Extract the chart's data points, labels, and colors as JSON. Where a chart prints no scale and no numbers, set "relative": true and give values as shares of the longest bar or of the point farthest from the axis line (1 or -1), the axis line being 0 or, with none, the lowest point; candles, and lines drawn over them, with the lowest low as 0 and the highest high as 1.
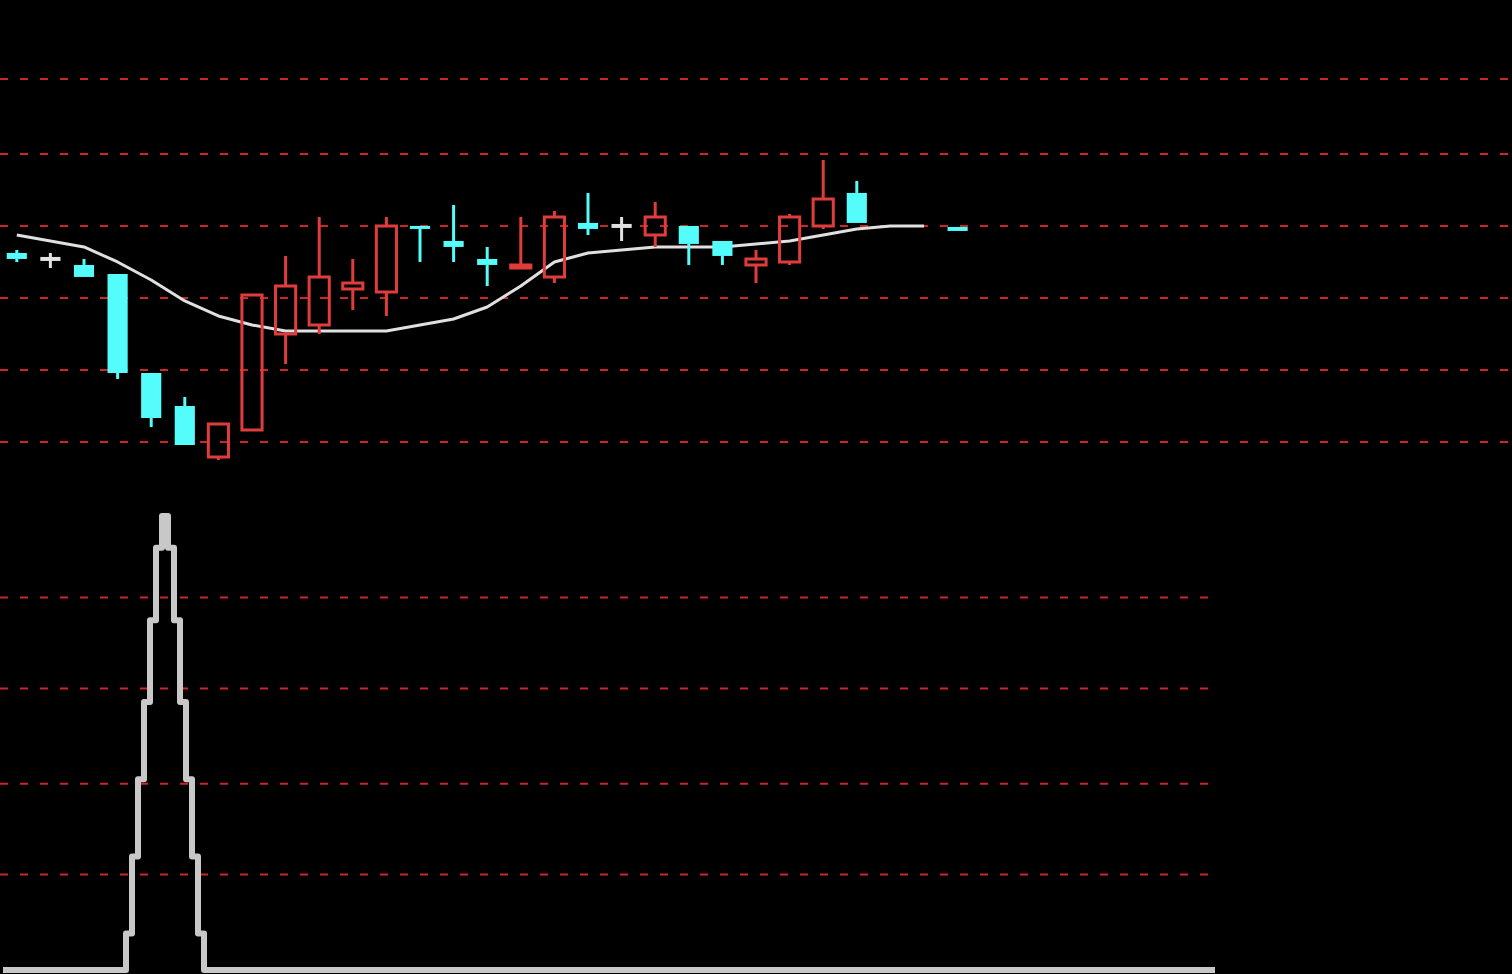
{
  "chart_data": [
    {
      "type": "candlestick",
      "relative": true,
      "categories": [
        null,
        null,
        null,
        null,
        null,
        null,
        null,
        null,
        null,
        null,
        null,
        null,
        null,
        null,
        null,
        null,
        null,
        null,
        null,
        null,
        null,
        null,
        null,
        null,
        null,
        null,
        null,
        null,
        null,
        null,
        null,
        null,
        null,
        null,
        null,
        null,
        null,
        null,
        null,
        null,
        null,
        null,
        null,
        null,
        null
      ],
      "ohlc": [
        [
          0.69,
          0.7,
          0.66,
          0.67
        ],
        [
          0.67,
          0.69,
          0.64,
          0.67
        ],
        [
          0.65,
          0.67,
          0.61,
          0.61
        ],
        [
          0.62,
          0.62,
          0.27,
          0.29
        ],
        [
          0.29,
          0.29,
          0.11,
          0.14
        ],
        [
          0.18,
          0.21,
          0.05,
          0.05
        ],
        [
          0.01,
          0.12,
          0,
          0.12
        ],
        [
          0.1,
          0.55,
          0.1,
          0.55
        ],
        [
          0.42,
          0.68,
          0.32,
          0.58
        ],
        [
          0.45,
          0.81,
          0.42,
          0.61
        ],
        [
          0.57,
          0.67,
          0.5,
          0.59
        ],
        [
          0.56,
          0.81,
          0.48,
          0.78
        ],
        [
          0.78,
          0.78,
          0.66,
          0.77
        ],
        [
          0.73,
          0.85,
          0.66,
          0.71
        ],
        [
          0.67,
          0.71,
          0.58,
          0.65
        ],
        [
          0.64,
          0.81,
          0.64,
          0.65
        ],
        [
          0.61,
          0.83,
          0.59,
          0.81
        ],
        [
          0.79,
          0.89,
          0.75,
          0.77
        ],
        [
          0.78,
          0.81,
          0.73,
          0.78
        ],
        [
          0.75,
          0.86,
          0.71,
          0.81
        ],
        [
          0.78,
          0.78,
          0.65,
          0.72
        ],
        [
          0.73,
          0.73,
          0.65,
          0.68
        ],
        [
          0.65,
          0.7,
          0.59,
          0.67
        ],
        [
          0.66,
          0.82,
          0.65,
          0.81
        ],
        [
          0.78,
          1,
          0.77,
          0.87
        ],
        [
          0.89,
          0.93,
          0.79,
          0.79
        ],
        null,
        null,
        [
          0.77,
          0.77,
          0.77,
          0.77
        ],
        null,
        null,
        null,
        null,
        null,
        null,
        null,
        null,
        null,
        null,
        null,
        null,
        null,
        null,
        null,
        null
      ],
      "colors": [
        "#54fcfc",
        "#e0e0e0",
        "#54fcfc",
        "#54fcfc",
        "#54fcfc",
        "#54fcfc",
        "#e03c3c",
        "#e03c3c",
        "#e03c3c",
        "#e03c3c",
        "#e03c3c",
        "#e03c3c",
        "#54fcfc",
        "#54fcfc",
        "#54fcfc",
        "#e03c3c",
        "#e03c3c",
        "#54fcfc",
        "#e0e0e0",
        "#e03c3c",
        "#54fcfc",
        "#54fcfc",
        "#e03c3c",
        "#e03c3c",
        "#e03c3c",
        "#54fcfc",
        null,
        null,
        "#54fcfc",
        null,
        null,
        null,
        null,
        null,
        null,
        null,
        null,
        null,
        null,
        null,
        null,
        null,
        null,
        null,
        null
      ],
      "series": [
        {
          "type": "line",
          "color": "#e0e0e0",
          "values": [
            0.75,
            0.73,
            0.71,
            0.66,
            0.6,
            0.53,
            0.48,
            0.45,
            0.43,
            0.43,
            0.43,
            0.43,
            0.45,
            0.47,
            0.51,
            0.58,
            0.66,
            0.69,
            0.7,
            0.71,
            0.71,
            0.71,
            0.72,
            0.73,
            0.75,
            0.77,
            0.78,
            0.78,
            null,
            null,
            null,
            null,
            null,
            null,
            null,
            null,
            null,
            null,
            null,
            null,
            null,
            null,
            null,
            null,
            null
          ]
        }
      ],
      "ref_lines": [
        {
          "axis": "y",
          "value": 0.06,
          "color": "#c82828",
          "line_style": "dashed"
        },
        {
          "axis": "y",
          "value": 0.3,
          "color": "#c82828",
          "line_style": "dashed"
        },
        {
          "axis": "y",
          "value": 0.54,
          "color": "#c82828",
          "line_style": "dashed"
        },
        {
          "axis": "y",
          "value": 0.78,
          "color": "#c82828",
          "line_style": "dashed"
        },
        {
          "axis": "y",
          "value": 1.02,
          "color": "#c82828",
          "line_style": "dashed"
        },
        {
          "axis": "y",
          "value": 1.27,
          "color": "#c82828",
          "line_style": "dashed"
        }
      ]
    },
    {
      "type": "step",
      "relative": true,
      "color": "#c8c8c8",
      "categories": [
        null,
        null,
        null,
        null,
        null,
        null,
        null,
        null,
        null,
        null,
        null,
        null,
        null,
        null,
        null,
        null,
        null,
        null,
        null,
        null,
        null,
        null,
        null,
        null,
        null,
        null,
        null,
        null,
        null,
        null,
        null,
        null,
        null,
        null,
        null,
        null,
        null,
        null,
        null,
        null,
        null,
        null,
        null,
        null,
        null,
        null,
        null,
        null,
        null,
        null,
        null,
        null,
        null,
        null,
        null,
        null,
        null,
        null,
        null,
        null,
        null,
        null,
        null,
        null,
        null,
        null,
        null,
        null,
        null,
        null,
        null,
        null,
        null,
        null,
        null,
        null,
        null,
        null,
        null,
        null,
        null,
        null,
        null,
        null,
        null,
        null,
        null,
        null,
        null,
        null,
        null,
        null,
        null,
        null,
        null,
        null,
        null,
        null,
        null,
        null,
        null,
        null,
        null,
        null,
        null,
        null,
        null,
        null,
        null,
        null,
        null,
        null,
        null,
        null,
        null,
        null,
        null,
        null,
        null,
        null,
        null,
        null,
        null,
        null,
        null,
        null,
        null,
        null,
        null,
        null,
        null,
        null,
        null,
        null,
        null,
        null,
        null,
        null,
        null,
        null,
        null,
        null,
        null,
        null,
        null,
        null,
        null,
        null,
        null,
        null,
        null,
        null,
        null,
        null,
        null,
        null,
        null,
        null,
        null,
        null,
        null,
        null,
        null,
        null,
        null,
        null,
        null,
        null,
        null,
        null,
        null,
        null,
        null,
        null,
        null,
        null,
        null,
        null,
        null,
        null,
        null,
        null,
        null,
        null,
        null,
        null,
        null,
        null,
        null,
        null,
        null,
        null,
        null,
        null,
        null,
        null,
        null,
        null,
        null,
        null,
        null,
        null,
        null
      ],
      "values": [
        0,
        0,
        0,
        0,
        0,
        0,
        0,
        0,
        0,
        0,
        0,
        0,
        0,
        0,
        0,
        0,
        0,
        0,
        0,
        0,
        0,
        0.08,
        0.25,
        0.42,
        0.59,
        0.77,
        0.93,
        1,
        0.93,
        0.77,
        0.59,
        0.42,
        0.25,
        0.08,
        0,
        0,
        0,
        0,
        0,
        0,
        0,
        0,
        0,
        0,
        0,
        0,
        0,
        0,
        0,
        0,
        0,
        0,
        0,
        0,
        0,
        0,
        0,
        0,
        0,
        0,
        0,
        0,
        0,
        0,
        0,
        0,
        0,
        0,
        0,
        0,
        0,
        0,
        0,
        0,
        0,
        0,
        0,
        0,
        0,
        0,
        0,
        0,
        0,
        0,
        0,
        0,
        0,
        0,
        0,
        0,
        0,
        0,
        0,
        0,
        0,
        0,
        0,
        0,
        0,
        0,
        0,
        0,
        0,
        0,
        0,
        0,
        0,
        0,
        0,
        0,
        0,
        0,
        0,
        0,
        0,
        0,
        0,
        0,
        0,
        0,
        0,
        0,
        0,
        0,
        0,
        0,
        0,
        0,
        0,
        0,
        0,
        0,
        0,
        0,
        0,
        0,
        0,
        0,
        0,
        0,
        0,
        0,
        0,
        0,
        0,
        0,
        0,
        0,
        0,
        0,
        0,
        0,
        0,
        0,
        0,
        0,
        0,
        0,
        0,
        0,
        0,
        0,
        0,
        0,
        0,
        0,
        0,
        0,
        0,
        0,
        0,
        0,
        0,
        0,
        0,
        0,
        0,
        0,
        0,
        0,
        0,
        0,
        0,
        0,
        0,
        0,
        0,
        0,
        0,
        0,
        0,
        0,
        0,
        0,
        0,
        0,
        0,
        0,
        0,
        0,
        0,
        0,
        0
      ],
      "ref_lines": [
        {
          "axis": "y",
          "value": 0.21,
          "color": "#c82828",
          "line_style": "dashed"
        },
        {
          "axis": "y",
          "value": 0.41,
          "color": "#c82828",
          "line_style": "dashed"
        },
        {
          "axis": "y",
          "value": 0.62,
          "color": "#c82828",
          "line_style": "dashed"
        },
        {
          "axis": "y",
          "value": 0.82,
          "color": "#c82828",
          "line_style": "dashed"
        }
      ]
    }
  ]
}
